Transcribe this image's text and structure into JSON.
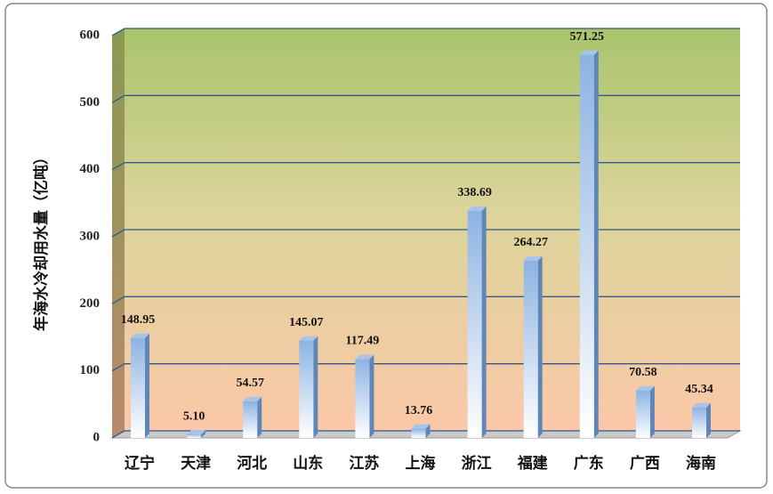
{
  "chart_data": {
    "type": "bar",
    "y_label": "年海水冷却用水量（亿吨）",
    "categories": [
      "辽宁",
      "天津",
      "河北",
      "山东",
      "江苏",
      "上海",
      "浙江",
      "福建",
      "广东",
      "广西",
      "海南"
    ],
    "values": [
      148.95,
      5.1,
      54.57,
      145.07,
      117.49,
      13.76,
      338.69,
      264.27,
      571.25,
      70.58,
      45.34
    ],
    "value_labels": [
      "148.95",
      "5.10",
      "54.57",
      "145.07",
      "117.49",
      "13.76",
      "338.69",
      "264.27",
      "571.25",
      "70.58",
      "45.34"
    ],
    "color": "#8db3e2",
    "ylim": [
      0,
      600
    ],
    "yticks": [
      0,
      100,
      200,
      300,
      400,
      500,
      600
    ],
    "grid": true
  }
}
